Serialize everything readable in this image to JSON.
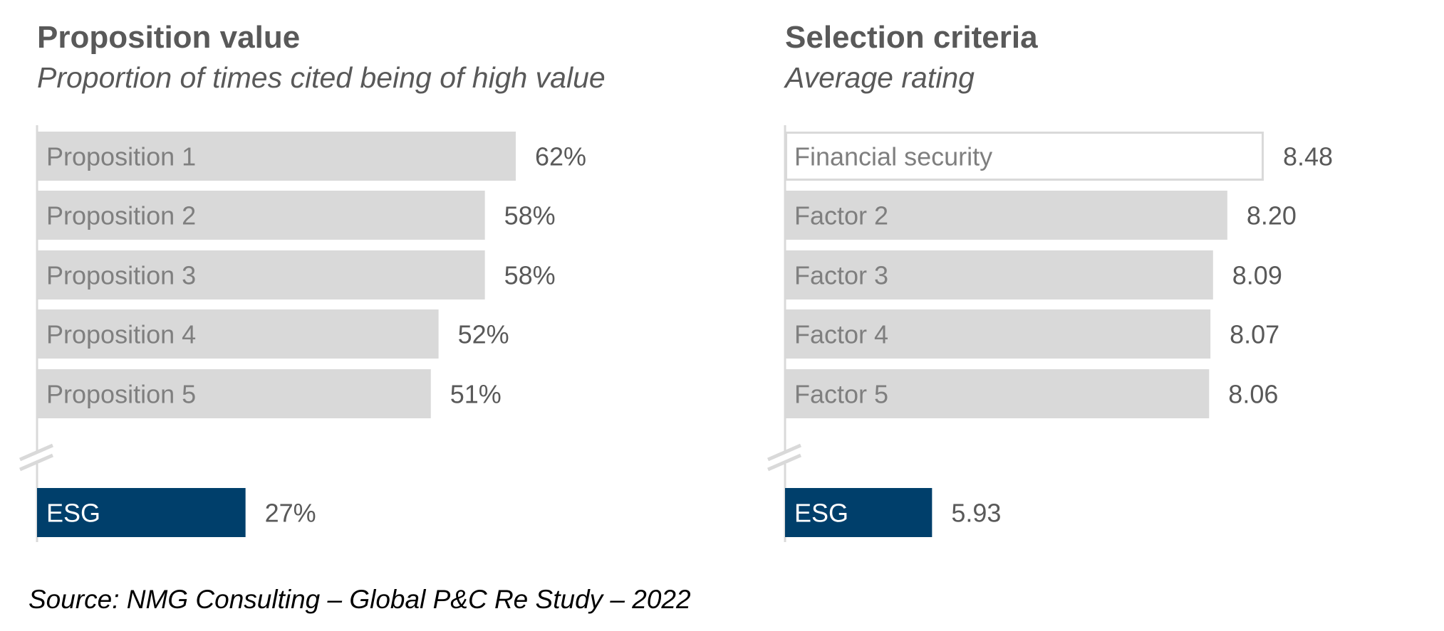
{
  "chart_data": [
    {
      "type": "bar",
      "orientation": "horizontal",
      "title": "Proposition value",
      "subtitle": "Proportion of times cited being of high value",
      "categories": [
        "Proposition 1",
        "Proposition 2",
        "Proposition 3",
        "Proposition 4",
        "Proposition 5",
        "ESG"
      ],
      "values": [
        62,
        58,
        58,
        52,
        51,
        27
      ],
      "value_labels": [
        "62%",
        "58%",
        "58%",
        "52%",
        "51%",
        "27%"
      ],
      "unit": "%",
      "axis_break": "before ESG",
      "highlight": {
        "category": "ESG",
        "color": "#003f6b"
      },
      "bar_color": "#d9d9d9"
    },
    {
      "type": "bar",
      "orientation": "horizontal",
      "title": "Selection criteria",
      "subtitle": "Average rating",
      "categories": [
        "Financial security",
        "Factor 2",
        "Factor 3",
        "Factor 4",
        "Factor 5",
        "ESG"
      ],
      "values": [
        8.48,
        8.2,
        8.09,
        8.07,
        8.06,
        5.93
      ],
      "value_labels": [
        "8.48",
        "8.20",
        "8.09",
        "8.07",
        "8.06",
        "5.93"
      ],
      "axis_break": "before ESG",
      "highlight": {
        "category": "ESG",
        "color": "#003f6b"
      },
      "outlined": {
        "category": "Financial security",
        "color": "#d9d9d9"
      },
      "bar_color": "#d9d9d9"
    }
  ],
  "source": "Source: NMG Consulting – Global P&C Re Study – 2022"
}
